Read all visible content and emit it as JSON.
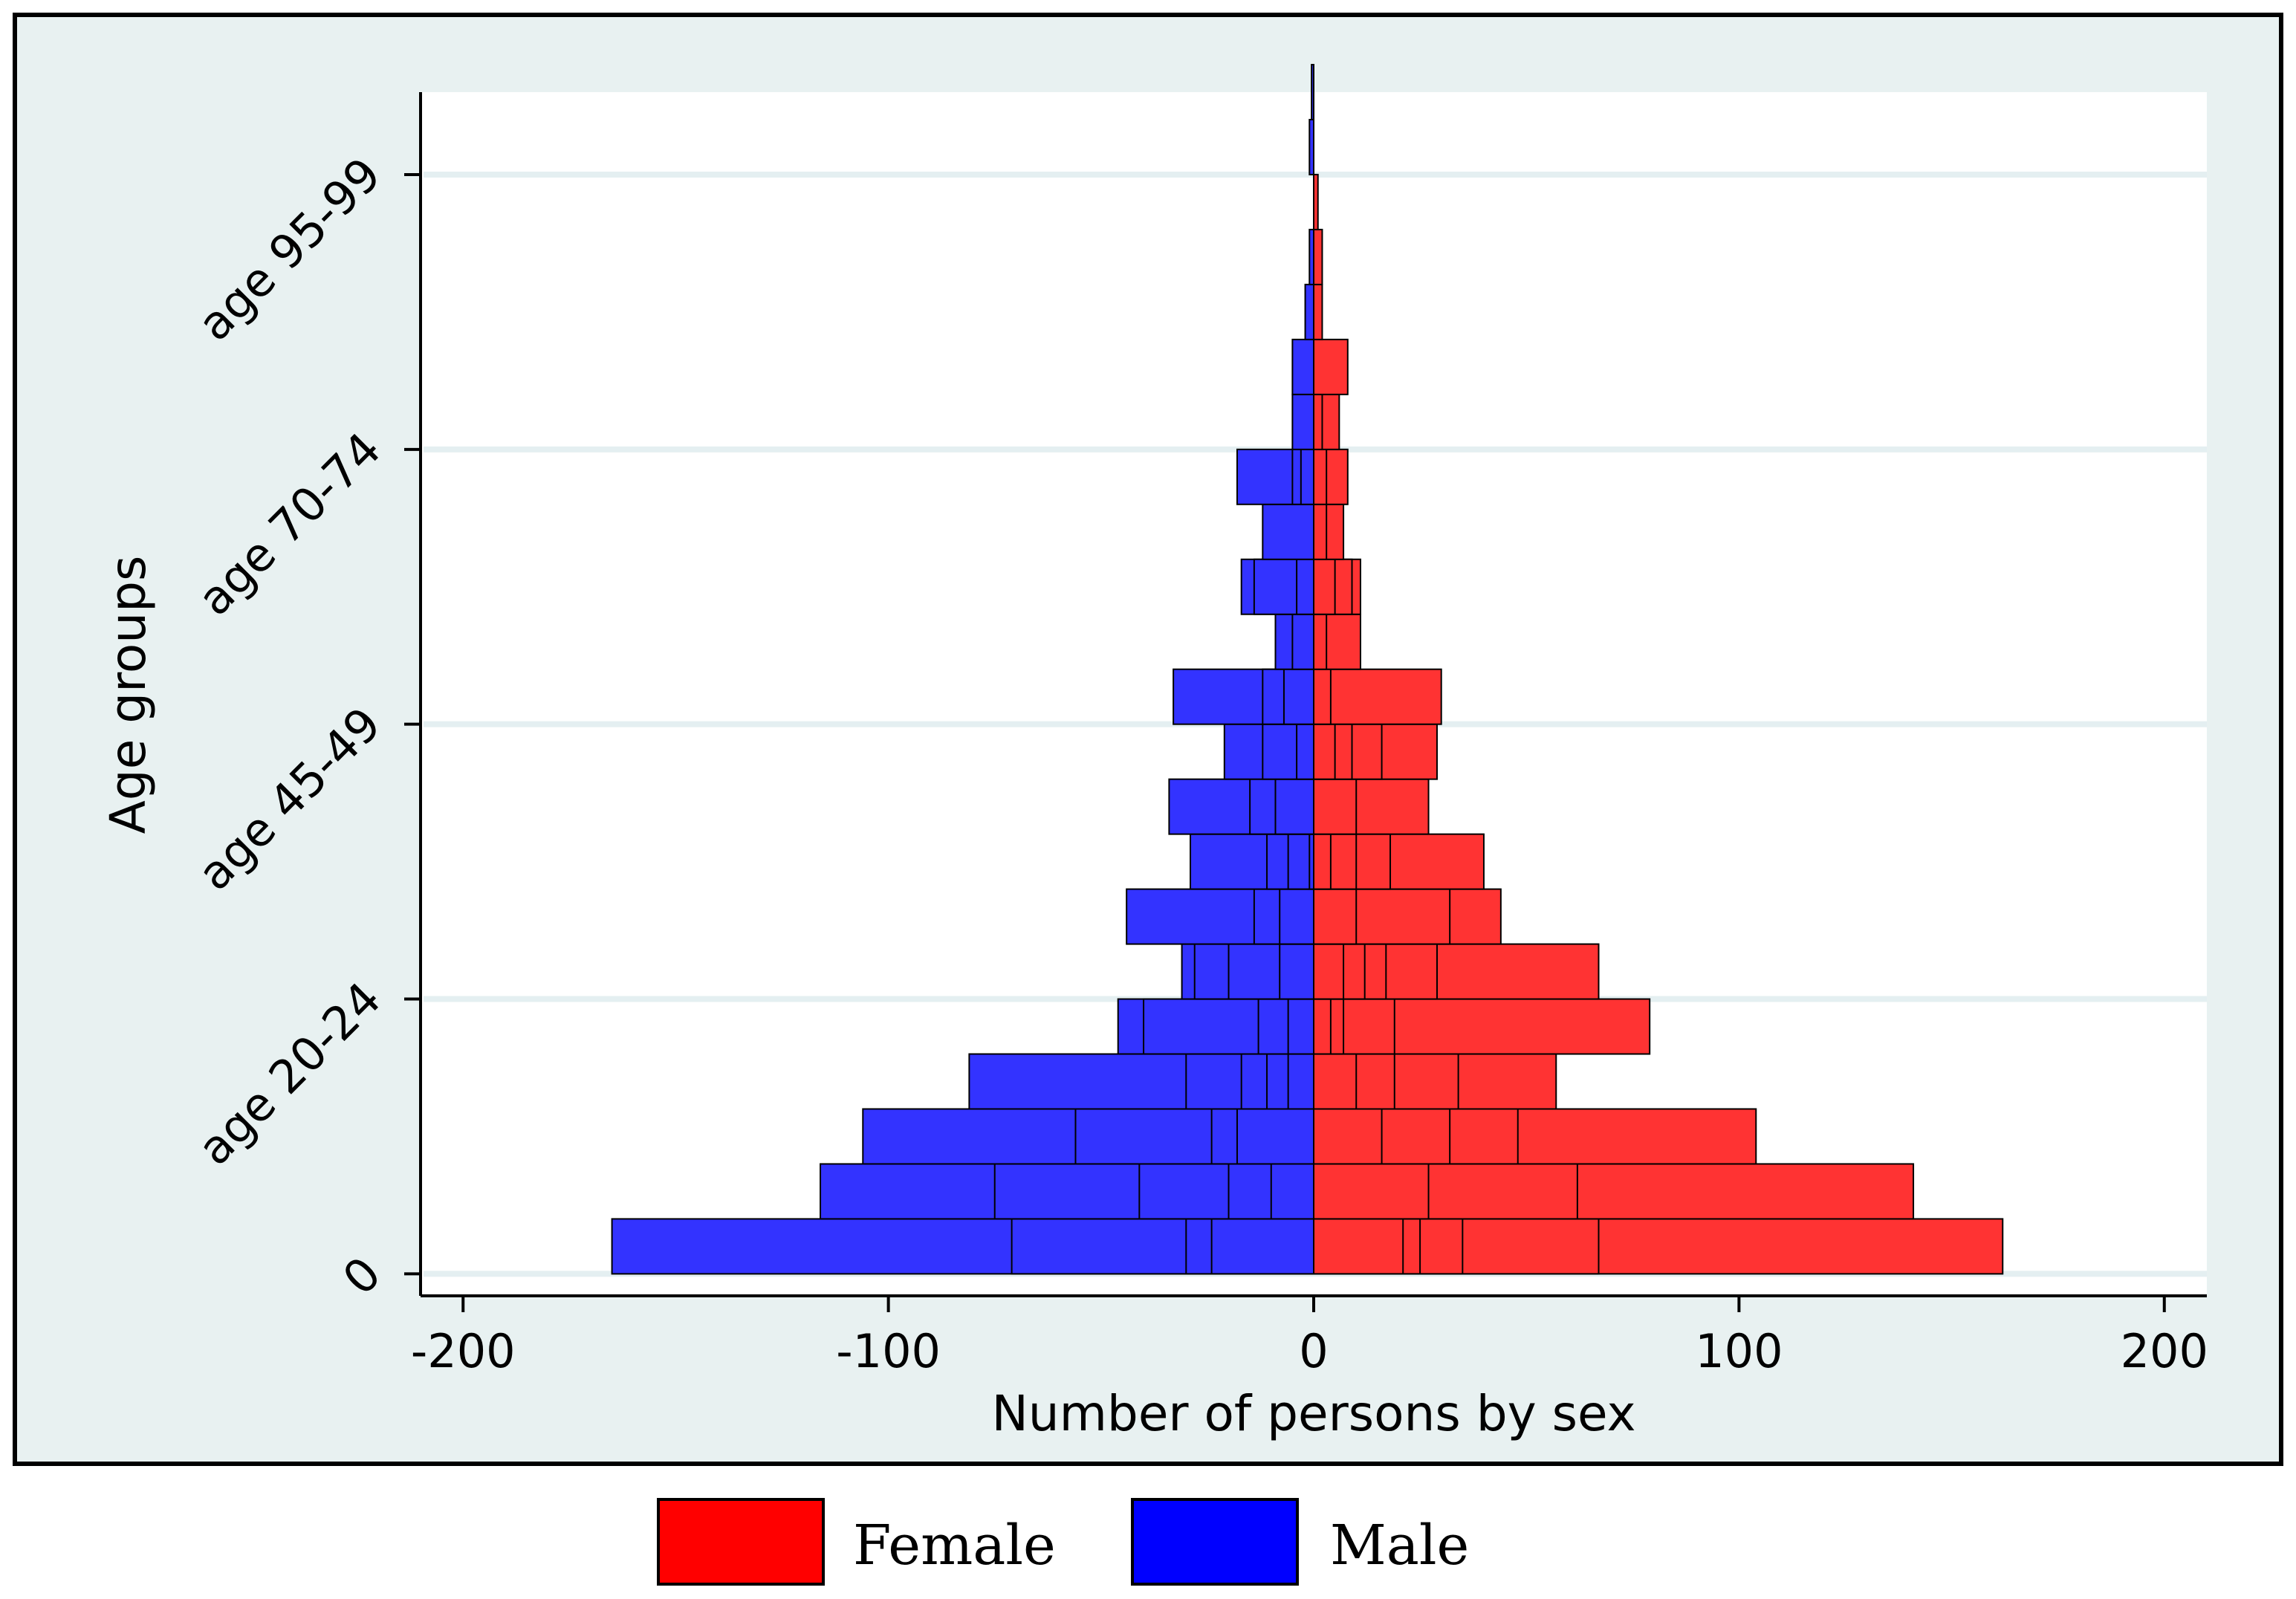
{
  "chart_data": {
    "type": "bar",
    "orientation": "horizontal",
    "stacked": true,
    "subtype": "population-pyramid",
    "title": "",
    "xlabel": "Number of persons by sex",
    "ylabel": "Age groups",
    "xlim": [
      -210,
      210
    ],
    "ylim": [
      -0.4,
      21.5
    ],
    "x_ticks": [
      -200,
      -100,
      0,
      100,
      200
    ],
    "x_tick_labels": [
      "-200",
      "-100",
      "0",
      "100",
      "200"
    ],
    "y_ticks": [
      0,
      5,
      10,
      15,
      20
    ],
    "y_tick_labels": [
      "0",
      "age 20-24",
      "age 45-49",
      "age 70-74",
      "age 95-99"
    ],
    "grid": true,
    "legend_position": "bottom",
    "colors": {
      "female": "#ff3333",
      "male": "#3333ff",
      "female_legend": "#ff0000",
      "male_legend": "#0000ff",
      "outer_background": "#e8f1f1",
      "plot_background": "#ffffff",
      "gridline": "#e4eff1"
    },
    "series": [
      {
        "name": "Female",
        "rows": [
          {
            "y": 0.5,
            "segments": [
              21,
              25,
              35,
              67,
              162
            ]
          },
          {
            "y": 1.5,
            "segments": [
              27,
              62,
              141
            ]
          },
          {
            "y": 2.5,
            "segments": [
              16,
              32,
              48,
              104
            ]
          },
          {
            "y": 3.5,
            "segments": [
              10,
              19,
              34,
              57
            ]
          },
          {
            "y": 4.5,
            "segments": [
              4,
              7,
              19,
              79
            ]
          },
          {
            "y": 5.5,
            "segments": [
              7,
              12,
              17,
              29,
              67
            ]
          },
          {
            "y": 6.5,
            "segments": [
              10,
              32,
              44
            ]
          },
          {
            "y": 7.5,
            "segments": [
              4,
              10,
              18,
              40
            ]
          },
          {
            "y": 8.5,
            "segments": [
              10,
              27
            ]
          },
          {
            "y": 9.5,
            "segments": [
              5,
              9,
              16,
              29
            ]
          },
          {
            "y": 10.5,
            "segments": [
              4,
              30
            ]
          },
          {
            "y": 11.5,
            "segments": [
              3,
              11
            ]
          },
          {
            "y": 12.5,
            "segments": [
              5,
              9,
              11
            ]
          },
          {
            "y": 13.5,
            "segments": [
              3,
              7
            ]
          },
          {
            "y": 14.5,
            "segments": [
              3,
              8
            ]
          },
          {
            "y": 15.5,
            "segments": [
              2,
              6
            ]
          },
          {
            "y": 16.5,
            "segments": [
              8
            ]
          },
          {
            "y": 17.5,
            "segments": [
              2
            ]
          },
          {
            "y": 18.5,
            "segments": [
              2
            ]
          },
          {
            "y": 19.5,
            "segments": [
              1
            ]
          }
        ]
      },
      {
        "name": "Male",
        "rows": [
          {
            "y": 0.5,
            "segments": [
              -24,
              -30,
              -71,
              -165
            ]
          },
          {
            "y": 1.5,
            "segments": [
              -10,
              -20,
              -41,
              -75,
              -116
            ]
          },
          {
            "y": 2.5,
            "segments": [
              -18,
              -24,
              -56,
              -106
            ]
          },
          {
            "y": 3.5,
            "segments": [
              -6,
              -11,
              -17,
              -30,
              -81
            ]
          },
          {
            "y": 4.5,
            "segments": [
              -6,
              -13,
              -40,
              -46
            ]
          },
          {
            "y": 5.5,
            "segments": [
              -8,
              -20,
              -28,
              -31
            ]
          },
          {
            "y": 6.5,
            "segments": [
              -8,
              -14,
              -44
            ]
          },
          {
            "y": 7.5,
            "segments": [
              -1,
              -6,
              -11,
              -29
            ]
          },
          {
            "y": 8.5,
            "segments": [
              -9,
              -15,
              -34
            ]
          },
          {
            "y": 9.5,
            "segments": [
              -4,
              -12,
              -21
            ]
          },
          {
            "y": 10.5,
            "segments": [
              -7,
              -12,
              -33
            ]
          },
          {
            "y": 11.5,
            "segments": [
              -5,
              -9
            ]
          },
          {
            "y": 12.5,
            "segments": [
              -4,
              -14,
              -17
            ]
          },
          {
            "y": 13.5,
            "segments": [
              -12
            ]
          },
          {
            "y": 14.5,
            "segments": [
              -3,
              -5,
              -18
            ]
          },
          {
            "y": 15.5,
            "segments": [
              -5
            ]
          },
          {
            "y": 16.5,
            "segments": [
              -5
            ]
          },
          {
            "y": 17.5,
            "segments": [
              -2
            ]
          },
          {
            "y": 18.5,
            "segments": [
              -1
            ]
          },
          {
            "y": 20.5,
            "segments": [
              -1
            ]
          },
          {
            "y": 21.5,
            "segments": [
              -0.5
            ]
          }
        ]
      }
    ],
    "legend": [
      {
        "label": "Female",
        "color": "#ff0000"
      },
      {
        "label": "Male",
        "color": "#0000ff"
      }
    ]
  }
}
